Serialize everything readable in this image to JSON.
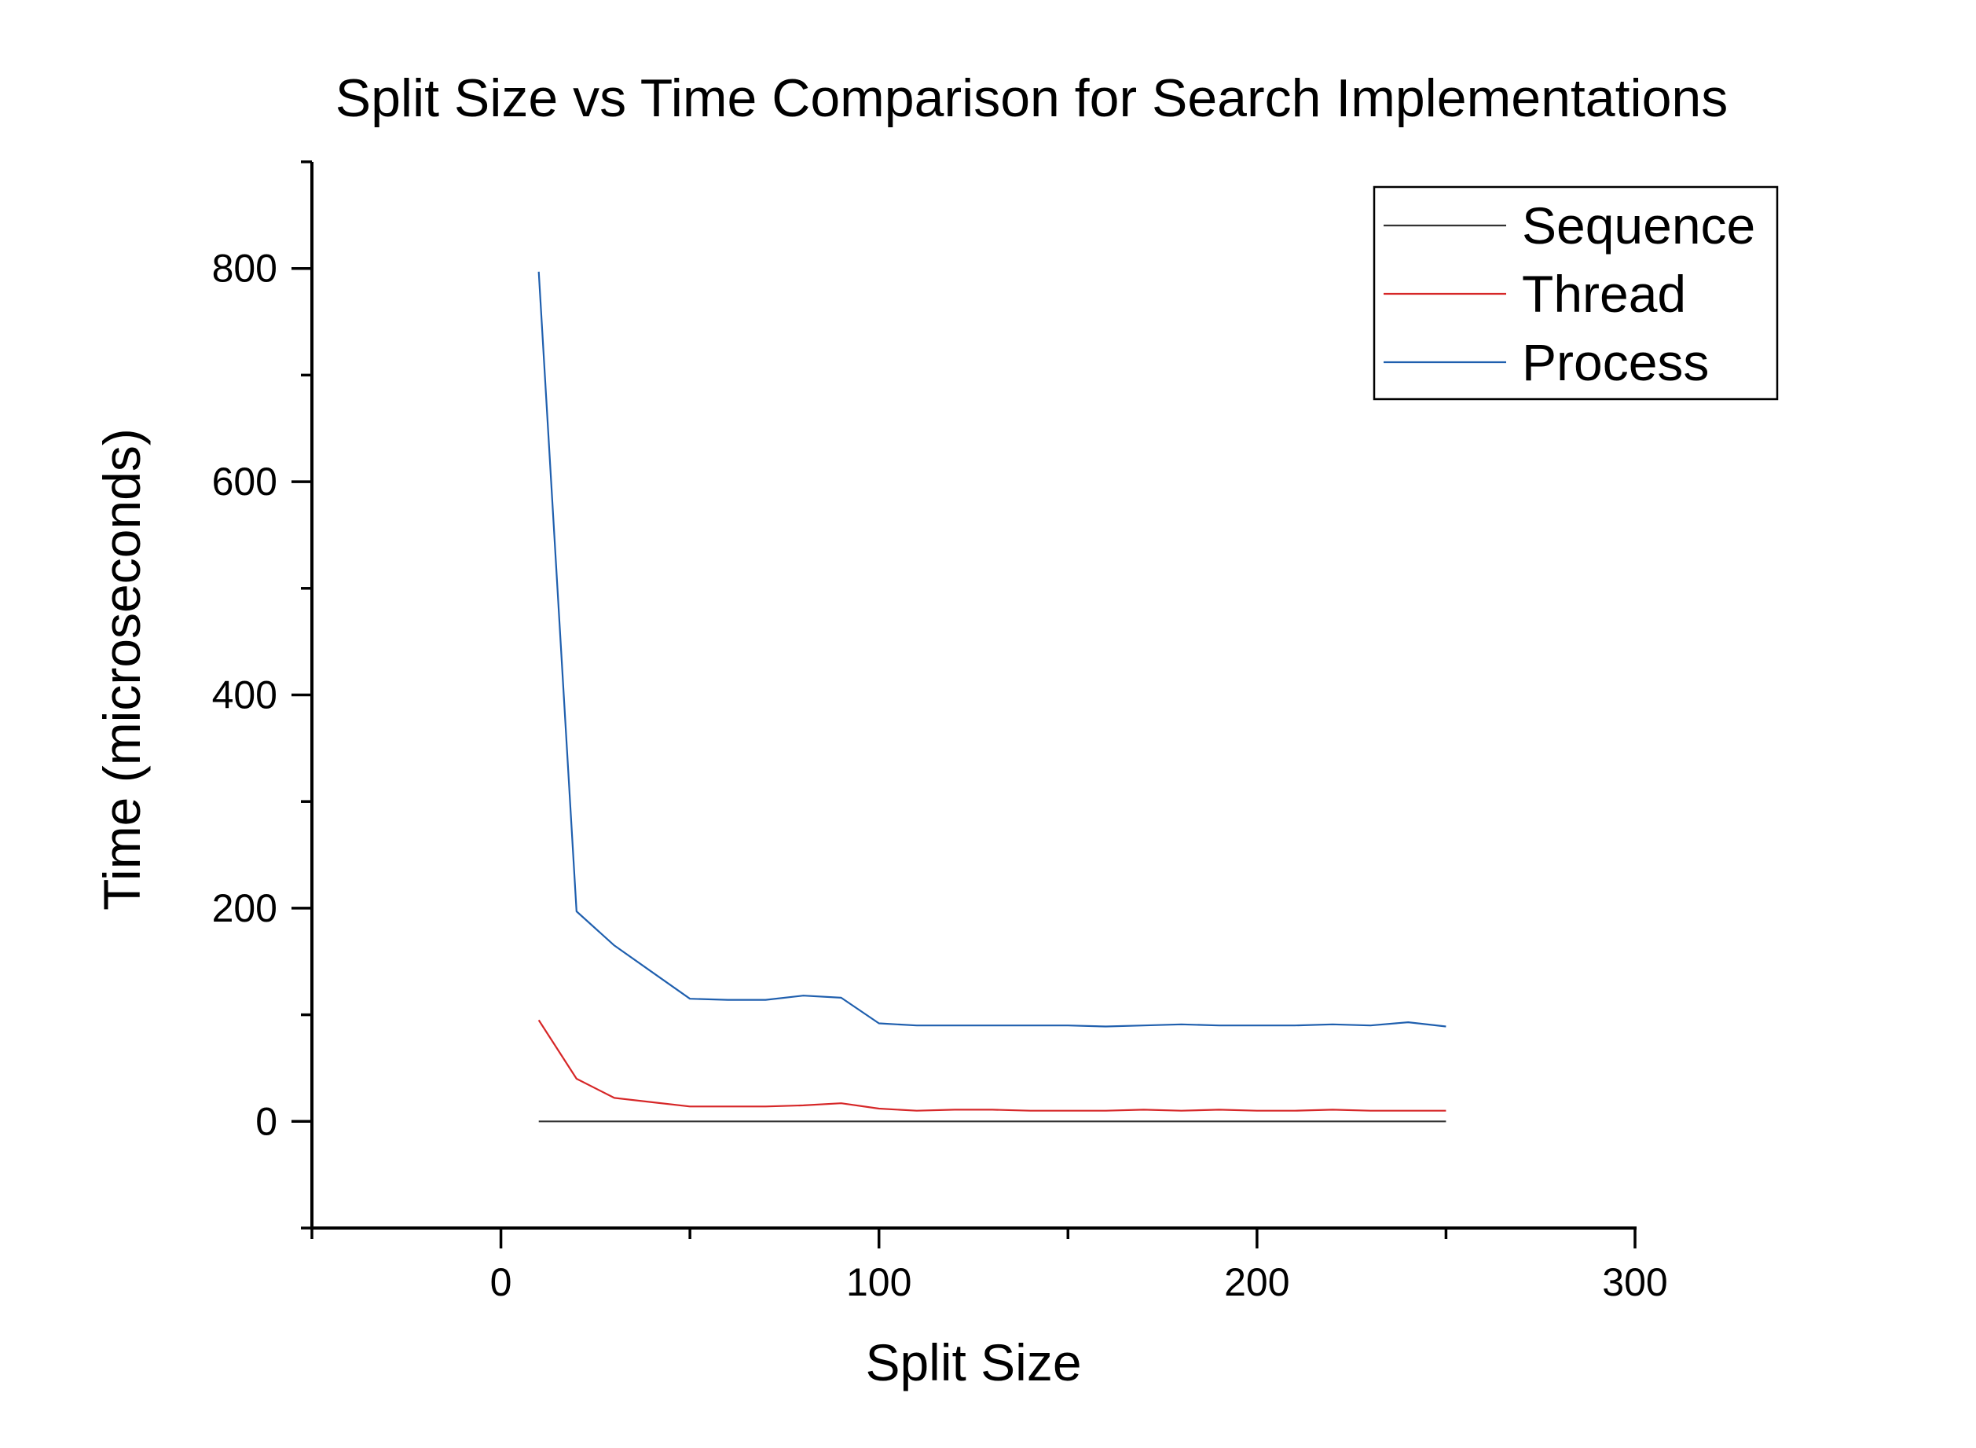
{
  "chart_data": {
    "type": "line",
    "title": "Split Size vs Time Comparison for Search Implementations",
    "xlabel": "Split Size",
    "ylabel": "Time (microseconds)",
    "xlim": [
      -50,
      300
    ],
    "ylim": [
      -100,
      900
    ],
    "x_ticks": [
      0,
      100,
      200,
      300
    ],
    "x_tick_labels": [
      "0",
      "100",
      "200",
      "300"
    ],
    "y_ticks": [
      0,
      200,
      400,
      600,
      800
    ],
    "y_tick_labels": [
      "0",
      "200",
      "400",
      "600",
      "800"
    ],
    "grid": false,
    "legend_position": "top-right",
    "x": [
      10,
      20,
      30,
      40,
      50,
      60,
      70,
      80,
      90,
      100,
      110,
      120,
      130,
      140,
      150,
      160,
      170,
      180,
      190,
      200,
      210,
      220,
      230,
      240,
      250
    ],
    "series": [
      {
        "name": "Sequence",
        "color": "#333333",
        "values": [
          0,
          0,
          0,
          0,
          0,
          0,
          0,
          0,
          0,
          0,
          0,
          0,
          0,
          0,
          0,
          0,
          0,
          0,
          0,
          0,
          0,
          0,
          0,
          0,
          0
        ]
      },
      {
        "name": "Thread",
        "color": "#d62728",
        "values": [
          95,
          40,
          22,
          18,
          14,
          14,
          14,
          15,
          17,
          12,
          10,
          11,
          11,
          10,
          10,
          10,
          11,
          10,
          11,
          10,
          10,
          11,
          10,
          10,
          10
        ]
      },
      {
        "name": "Process",
        "color": "#1f5fae",
        "values": [
          797,
          197,
          165,
          140,
          115,
          114,
          114,
          118,
          116,
          92,
          90,
          90,
          90,
          90,
          90,
          89,
          90,
          91,
          90,
          90,
          90,
          91,
          90,
          93,
          89
        ]
      }
    ]
  }
}
